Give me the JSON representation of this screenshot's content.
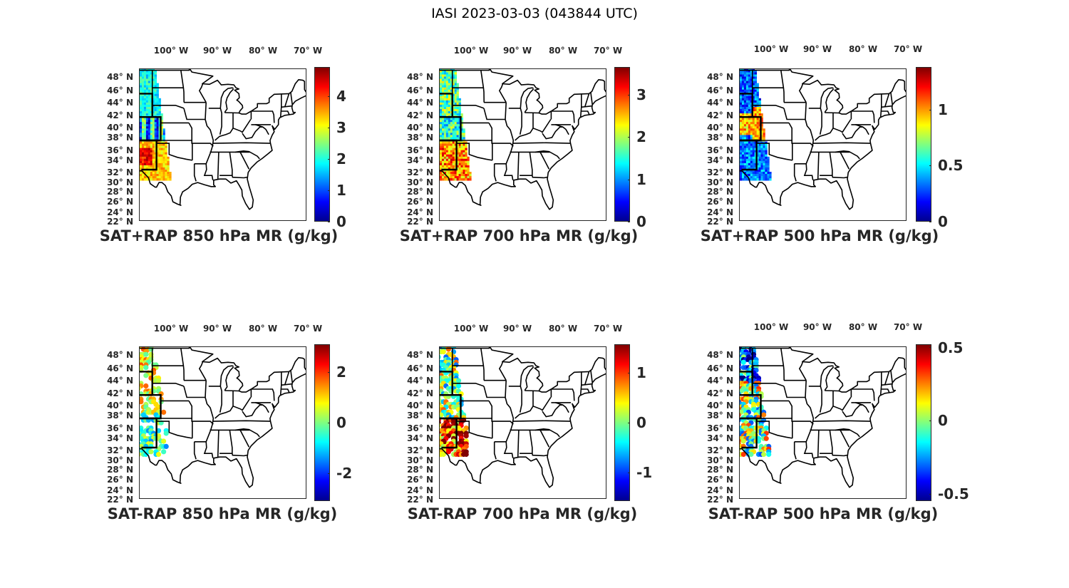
{
  "figure_title": "IASI 2023-03-03 (043844 UTC)",
  "lon_labels": [
    "100° W",
    "90° W",
    "80° W",
    "70° W"
  ],
  "lat_labels": [
    "48° N",
    "46° N",
    "44° N",
    "42° N",
    "40° N",
    "38° N",
    "36° N",
    "34° N",
    "32° N",
    "30° N",
    "28° N",
    "26° N",
    "24° N",
    "22° N"
  ],
  "colormap": "jet",
  "panels": [
    {
      "title": "SAT+RAP 850 hPa MR (g/kg)",
      "clim": [
        0,
        4.93
      ],
      "ticks": [
        "0",
        "1",
        "2",
        "3",
        "4"
      ],
      "tick_values": [
        0,
        1,
        2,
        3,
        4
      ],
      "kind": "total"
    },
    {
      "title": "SAT+RAP 700 hPa MR (g/kg)",
      "clim": [
        0,
        3.65
      ],
      "ticks": [
        "0",
        "1",
        "2",
        "3"
      ],
      "tick_values": [
        0,
        1,
        2,
        3
      ],
      "kind": "total"
    },
    {
      "title": "SAT+RAP 500 hPa MR (g/kg)",
      "clim": [
        0,
        1.38
      ],
      "ticks": [
        "0",
        "0.5",
        "1"
      ],
      "tick_values": [
        0,
        0.5,
        1
      ],
      "kind": "total"
    },
    {
      "title": "SAT-RAP 850 hPa MR (g/kg)",
      "clim": [
        -3.1,
        3.1
      ],
      "ticks": [
        "-2",
        "0",
        "2"
      ],
      "tick_values": [
        -2,
        0,
        2
      ],
      "kind": "diff"
    },
    {
      "title": "SAT-RAP 700 hPa MR (g/kg)",
      "clim": [
        -1.57,
        1.57
      ],
      "ticks": [
        "-1",
        "0",
        "1"
      ],
      "tick_values": [
        -1,
        0,
        1
      ],
      "kind": "diff"
    },
    {
      "title": "SAT-RAP 500 hPa MR (g/kg)",
      "clim": [
        -0.55,
        0.52
      ],
      "ticks": [
        "-0.5",
        "0",
        "0.5"
      ],
      "tick_values": [
        -0.5,
        0,
        0.5
      ],
      "kind": "diff"
    }
  ]
}
